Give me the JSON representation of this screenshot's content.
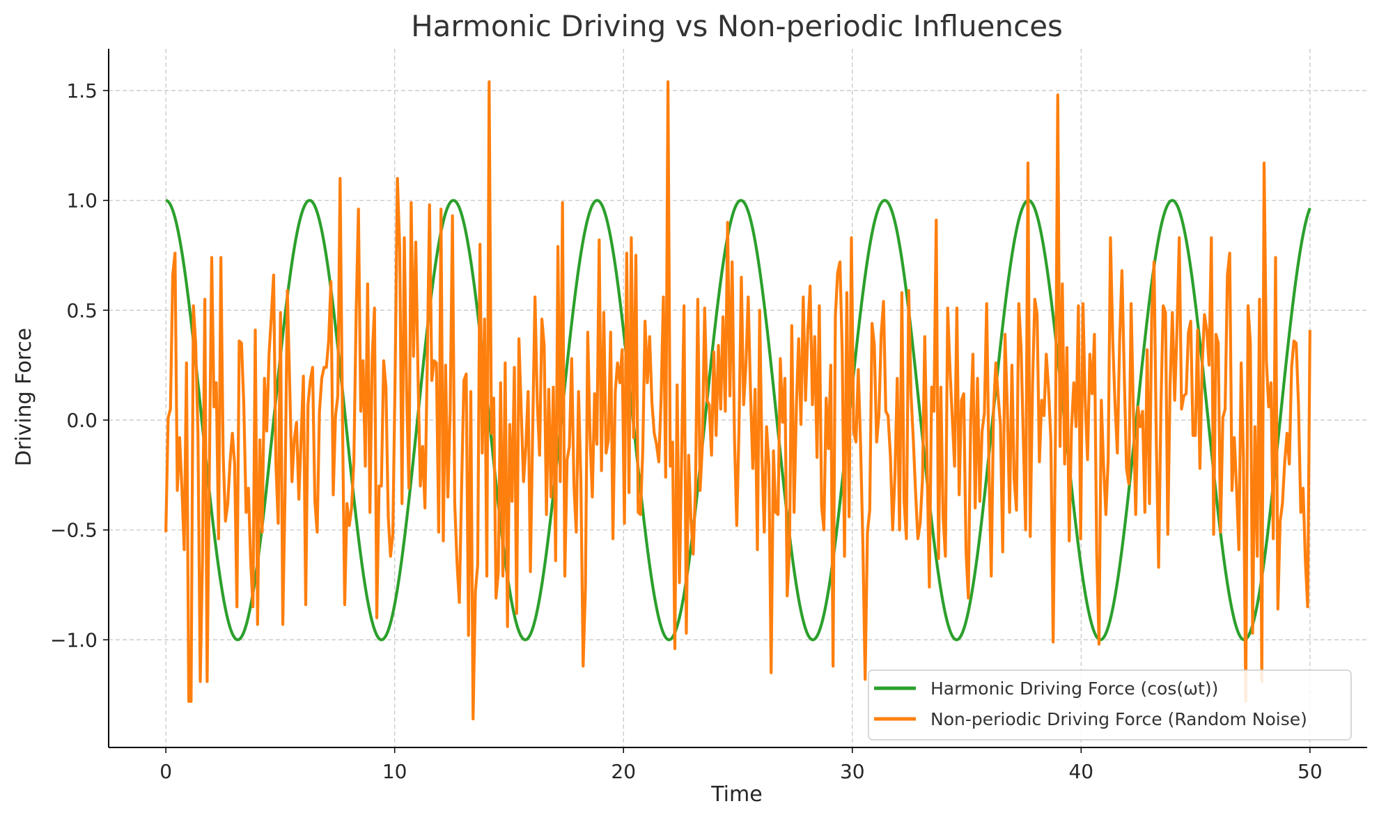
{
  "chart_data": {
    "type": "line",
    "title": "Harmonic Driving vs Non-periodic Influences",
    "xlabel": "Time",
    "ylabel": "Driving Force",
    "xlim": [
      -2.5,
      52.5
    ],
    "ylim": [
      -1.49,
      1.69
    ],
    "x_ticks": [
      0,
      10,
      20,
      30,
      40,
      50
    ],
    "x_tick_labels": [
      "0",
      "10",
      "20",
      "30",
      "40",
      "50"
    ],
    "y_ticks": [
      1.5,
      1.0,
      0.5,
      0.0,
      -0.5,
      -1.0
    ],
    "y_tick_labels": [
      "1.5",
      "1.0",
      "0.5",
      "0.0",
      "−0.5",
      "−1.0"
    ],
    "grid": true,
    "legend_position": "lower-right",
    "series": [
      {
        "name": "Harmonic Driving Force (cos(ωt))",
        "color": "#2ca02c",
        "function": "cos(t)",
        "x_range": [
          0,
          50
        ],
        "sample_count": 1000
      },
      {
        "name": "Non-periodic Driving Force (Random Noise)",
        "color": "#ff7f0e",
        "x_range": [
          0,
          50
        ],
        "sample_count": 500,
        "values": [
          -0.51,
          0.01,
          0.05,
          0.66,
          0.76,
          -0.32,
          -0.08,
          -0.31,
          -0.59,
          0.26,
          -0.18,
          -1.28,
          0.52,
          0.35,
          -0.06,
          -0.03,
          -0.62,
          0.55,
          -1.19,
          -0.21,
          0.27,
          0.06,
          0.17,
          -0.54,
          0.74,
          -0.16,
          -0.46,
          -0.38,
          -0.19,
          -0.06,
          -0.2,
          0.24,
          0.36,
          0.35,
          0.07,
          -0.42,
          -0.31,
          -0.64,
          -0.85,
          0.41,
          0.37,
          -0.09,
          -0.51,
          0.19,
          -0.05,
          0.3,
          0.47,
          0.66,
          -0.2,
          -0.47,
          0.49,
          -0.93,
          -0.32,
          0.59,
          0.17,
          -0.28,
          -0.09,
          -0.01,
          -0.36,
          -0.08,
          0.2,
          0.06,
          0.07,
          0.18,
          0.24,
          -0.37,
          -0.51,
          0.04,
          0.19,
          0.24,
          0.24,
          0.36,
          0.63,
          -0.34,
          0.02,
          0.11,
          0.28,
          0.04,
          -0.84,
          -0.38,
          -0.48,
          -0.4,
          -0.19,
          0.49,
          -0.77,
          0.04,
          0.27,
          -0.21,
          0.62,
          -0.42,
          0.29,
          0.51,
          0.04,
          -0.3,
          -0.3,
          0.27,
          0.15,
          -0.44,
          -0.62,
          -0.52,
          0.21,
          1.1,
          0.78,
          -0.38,
          -0.33,
          0.14,
          -0.31,
          0.99,
          0.29,
          0.81,
          0.19,
          -0.3,
          -0.12,
          -0.4,
          0.25,
          -0.69,
          0.18,
          0.27,
          0.26,
          -0.51,
          0.96,
          -0.55,
          0.25,
          -0.35,
          0.04,
          0.06,
          -0.38,
          -0.65,
          -0.83,
          -0.3,
          0.18,
          0.21,
          -0.23,
          0.13,
          0.11,
          -0.78,
          -0.66,
          0.83,
          -0.15,
          0.46,
          -0.71,
          0.62,
          -0.06,
          0.1,
          -0.81,
          -0.69,
          0.17,
          -0.71,
          0.26,
          -0.94,
          -0.02,
          -0.37,
          0.24,
          -0.88,
          0.37,
          0.04,
          -0.28,
          -0.12,
          0.13,
          -0.69,
          -0.04,
          0.56,
          0.08,
          -0.16,
          0.46,
          0.34,
          -0.43,
          0.14,
          -0.35,
          0.15,
          -0.64,
          0.79,
          -0.28,
          0.99,
          -0.71,
          -0.18,
          -0.12,
          0.28,
          -0.3,
          -0.51,
          0.13,
          -0.27,
          -0.24,
          -0.76,
          0.4,
          -0.07,
          -0.35,
          0.12,
          -0.11,
          0.82,
          -0.23,
          0.49,
          -0.15,
          -0.09,
          0.4,
          -0.54,
          0.13,
          0.26,
          0.17,
          0.32,
          -0.47,
          0.76,
          -0.33,
          0.83,
          -0.08,
          0.75,
          -0.42,
          -0.43,
          -0.14,
          0.45,
          0.17,
          0.38,
          0.08,
          -0.06,
          -0.11,
          -0.19,
          0.1,
          0.56,
          -0.26,
          1.54,
          -0.21,
          -0.1,
          -0.09,
          0.16,
          -0.74,
          -0.14,
          0.52,
          -0.97,
          -0.16,
          -0.45,
          -0.61,
          -0.31,
          0.55,
          -0.32,
          -0.12,
          0.51,
          0.09,
          0.07,
          -0.16,
          0.31,
          -0.07,
          0.34,
          0.05,
          0.47,
          0.04,
          -0.03,
          0.11,
          0.72,
          -0.08,
          -0.48,
          -0.03,
          0.65,
          0.07,
          0.25,
          0.56,
          0.13,
          -0.22,
          0.14,
          -0.59,
          0.5,
          -0.16,
          -0.51,
          -0.03,
          -0.2,
          0.13,
          -0.14,
          -0.42,
          -0.43,
          0.28,
          -0.01,
          0.19,
          0.53,
          -0.59,
          0.43,
          -0.42,
          0.06,
          0.37,
          -0.02,
          0.56,
          0.09,
          0.41,
          0.61,
          0.07,
          0.38,
          -0.17,
          0.52,
          -0.39,
          -0.5,
          0.1,
          -0.13,
          0.25,
          -0.05,
          0.47,
          0.67,
          0.72,
          0.31,
          -0.62,
          0.58,
          -0.44,
          0.11,
          -0.05,
          -0.1,
          0.23,
          -0.11,
          -0.56,
          0.16,
          -0.51,
          -0.41,
          0.44,
          0.34,
          -0.1,
          0.02,
          0.39,
          0.54,
          0.04,
          0.02,
          -0.16,
          -0.5,
          -0.25,
          0.19,
          -0.5,
          0.58,
          -0.37,
          -0.54,
          0.59,
          0.12,
          -0.09,
          -0.33,
          -0.54,
          -0.47,
          -0.27,
          0.38,
          -0.19,
          -0.76,
          0.15,
          0.04,
          -0.4,
          -0.63,
          0.15,
          -0.44,
          -0.62,
          0.51,
          0.23,
          0.01,
          -0.21,
          0.51,
          -0.34,
          0.09,
          0.12,
          -0.6,
          -0.81,
          -0.02,
          0.3,
          -0.4,
          0.19,
          -0.37,
          -0.05,
          0.03,
          0.53,
          -0.22,
          -0.71,
          0.05,
          0.26,
          0.11,
          -0.02,
          -0.6,
          0.39,
          0.06,
          -0.42,
          0.25,
          -0.27,
          -0.41,
          0.53,
          0.33,
          -0.09,
          -0.5,
          0.31,
          -0.53,
          0.16,
          0.55,
          0.48,
          -0.19,
          0.09,
          0.02,
          0.3,
          0.14,
          -0.09,
          0.13,
          -0.07,
          -0.08,
          -0.12,
          0.62,
          -0.2,
          0.33,
          -0.55,
          -0.04,
          0.17,
          -0.03,
          0.52,
          -0.54,
          0.53,
          0.08,
          -0.18,
          0.3,
          0.12,
          0.39,
          -0.61,
          0.13,
          0.09,
          -0.21,
          -0.43,
          -0.18,
          -0.24,
          0.36,
          0.07,
          -0.15,
          0.36,
          0.68,
          0.21,
          -0.22,
          -0.29,
          0.53,
          0.04,
          -0.43,
          0.06,
          -0.03,
          0.04,
          -0.42,
          0.32,
          -0.38,
          0.48,
          0.72,
          -0.1,
          -0.67,
          0.06,
          0.52,
          0.49,
          -0.52,
          0.16,
          0.49,
          0.09,
          0.41,
          -0.61,
          0.05,
          0.11,
          0.12,
          0.4,
          0.45,
          -0.07,
          -0.07,
          0.41,
          -0.22,
          0.25,
          0.48,
          0.41,
          0.25,
          -0.11,
          -0.52,
          0.39,
          0.35
        ],
        "spikes": [
          [
            1.0,
            -1.28
          ],
          [
            1.5,
            -1.19
          ],
          [
            2.0,
            0.74
          ],
          [
            3.1,
            -0.85
          ],
          [
            4.0,
            -0.93
          ],
          [
            6.1,
            -0.84
          ],
          [
            7.6,
            1.1
          ],
          [
            8.4,
            0.96
          ],
          [
            9.2,
            -0.9
          ],
          [
            10.4,
            0.83
          ],
          [
            11.5,
            0.98
          ],
          [
            12.5,
            0.93
          ],
          [
            13.2,
            -0.98
          ],
          [
            13.4,
            -1.36
          ],
          [
            13.7,
            0.8
          ],
          [
            14.1,
            1.54
          ],
          [
            18.2,
            -1.12
          ],
          [
            22.2,
            -1.04
          ],
          [
            24.5,
            0.9
          ],
          [
            26.5,
            -1.15
          ],
          [
            27.2,
            -0.8
          ],
          [
            29.2,
            -1.12
          ],
          [
            30.0,
            0.83
          ],
          [
            30.6,
            -1.18
          ],
          [
            33.7,
            0.91
          ],
          [
            37.7,
            1.17
          ],
          [
            38.8,
            -1.01
          ],
          [
            39.0,
            1.48
          ],
          [
            40.8,
            -1.02
          ],
          [
            41.3,
            0.83
          ],
          [
            44.3,
            0.83
          ],
          [
            45.7,
            0.83
          ],
          [
            47.5,
            -0.97
          ],
          [
            48.0,
            1.17
          ],
          [
            48.6,
            -0.86
          ]
        ]
      }
    ]
  }
}
